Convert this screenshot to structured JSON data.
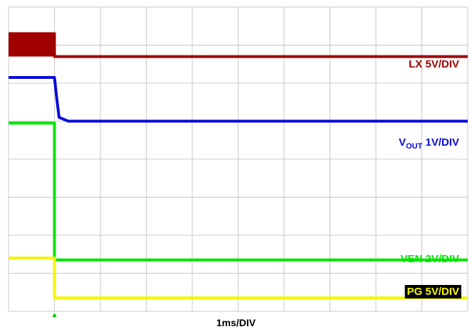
{
  "chart_data": {
    "type": "line",
    "title": "",
    "xlabel": "1ms/DIV",
    "ylabel": "",
    "grid": true,
    "x_divisions": 10,
    "y_divisions": 8,
    "x_unit": "ms",
    "x_range_ms": [
      0,
      10
    ],
    "event_time_ms": 1.0,
    "series": [
      {
        "name": "LX 5V/DIV",
        "label_main": "LX 5V/DIV",
        "color": "#a00000",
        "style": "switching-then-low",
        "x_ms": [
          0,
          1.0,
          1.0,
          10
        ],
        "y_div": [
          7.3,
          7.3,
          6.7,
          6.7
        ],
        "switching_band_div": [
          6.7,
          7.3
        ]
      },
      {
        "name": "VOUT 1V/DIV",
        "label_main": "V",
        "label_sub": "OUT",
        "label_rest": " 1V/DIV",
        "color": "#0a0adc",
        "x_ms": [
          0,
          1.0,
          1.05,
          1.1,
          1.3,
          10
        ],
        "y_div": [
          6.15,
          6.15,
          5.6,
          5.1,
          5.0,
          5.0
        ]
      },
      {
        "name": "VEN 2V/DIV",
        "label_main": "VEN 2V/DIV",
        "color": "#00e600",
        "x_ms": [
          0,
          1.0,
          1.0,
          10
        ],
        "y_div": [
          4.95,
          4.95,
          1.35,
          1.35
        ]
      },
      {
        "name": "PG 5V/DIV",
        "label_main": "PG 5V/DIV",
        "color": "#f5f500",
        "label_background": "#000000",
        "x_ms": [
          0,
          1.0,
          1.0,
          10
        ],
        "y_div": [
          1.4,
          1.4,
          0.35,
          0.35
        ]
      }
    ]
  }
}
